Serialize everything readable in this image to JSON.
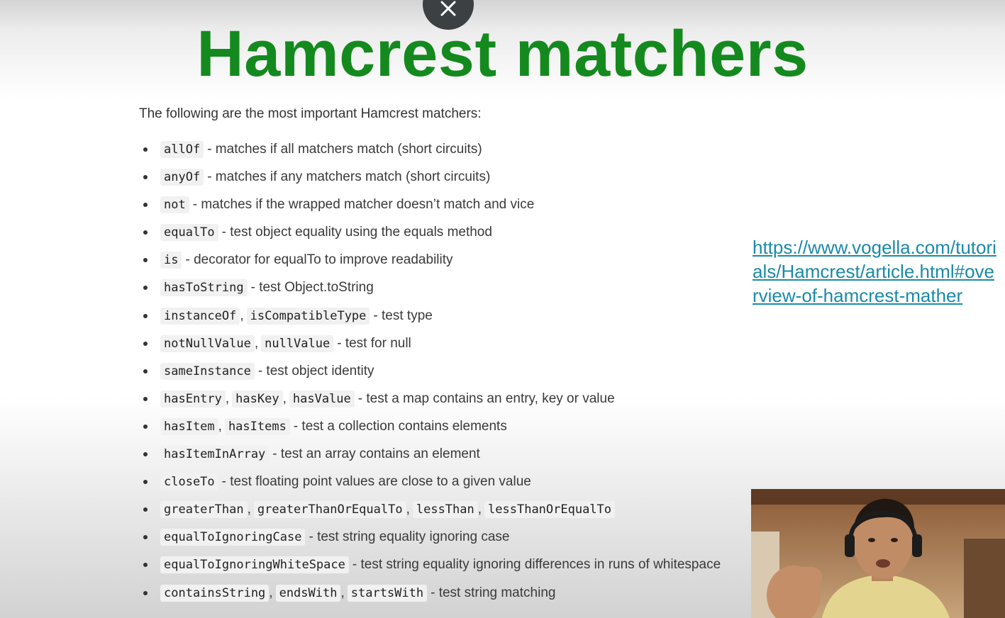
{
  "slide": {
    "title": "Hamcrest matchers",
    "intro": "The following are the most important Hamcrest matchers:",
    "link": "https://www.vogella.com/tutorials/Hamcrest/article.html#overview-of-hamcrest-mather"
  },
  "overlay": {
    "close_icon": "close-icon"
  },
  "matchers": [
    {
      "codes": [
        "allOf"
      ],
      "desc": "- matches if all matchers match (short circuits)"
    },
    {
      "codes": [
        "anyOf"
      ],
      "desc": "- matches if any matchers match (short circuits)"
    },
    {
      "codes": [
        "not"
      ],
      "desc": "- matches if the wrapped matcher doesn’t match and vice"
    },
    {
      "codes": [
        "equalTo"
      ],
      "desc": "- test object equality using the equals method"
    },
    {
      "codes": [
        "is"
      ],
      "desc": "- decorator for equalTo to improve readability"
    },
    {
      "codes": [
        "hasToString"
      ],
      "desc": "- test Object.toString"
    },
    {
      "codes": [
        "instanceOf",
        "isCompatibleType"
      ],
      "desc": "- test type"
    },
    {
      "codes": [
        "notNullValue",
        "nullValue"
      ],
      "desc": "- test for null"
    },
    {
      "codes": [
        "sameInstance"
      ],
      "desc": "- test object identity"
    },
    {
      "codes": [
        "hasEntry",
        "hasKey",
        "hasValue"
      ],
      "desc": "- test a map contains an entry, key or value"
    },
    {
      "codes": [
        "hasItem",
        "hasItems"
      ],
      "desc": "- test a collection contains elements"
    },
    {
      "codes": [
        "hasItemInArray"
      ],
      "desc": "- test an array contains an element"
    },
    {
      "codes": [
        "closeTo"
      ],
      "desc": "- test floating point values are close to a given value"
    },
    {
      "codes": [
        "greaterThan",
        "greaterThanOrEqualTo",
        "lessThan",
        "lessThanOrEqualTo"
      ],
      "desc": ""
    },
    {
      "codes": [
        "equalToIgnoringCase"
      ],
      "desc": "- test string equality ignoring case"
    },
    {
      "codes": [
        "equalToIgnoringWhiteSpace"
      ],
      "desc": "- test string equality ignoring differences in runs of whitespace"
    },
    {
      "codes": [
        "containsString",
        "endsWith",
        "startsWith"
      ],
      "desc": "- test string matching"
    }
  ]
}
